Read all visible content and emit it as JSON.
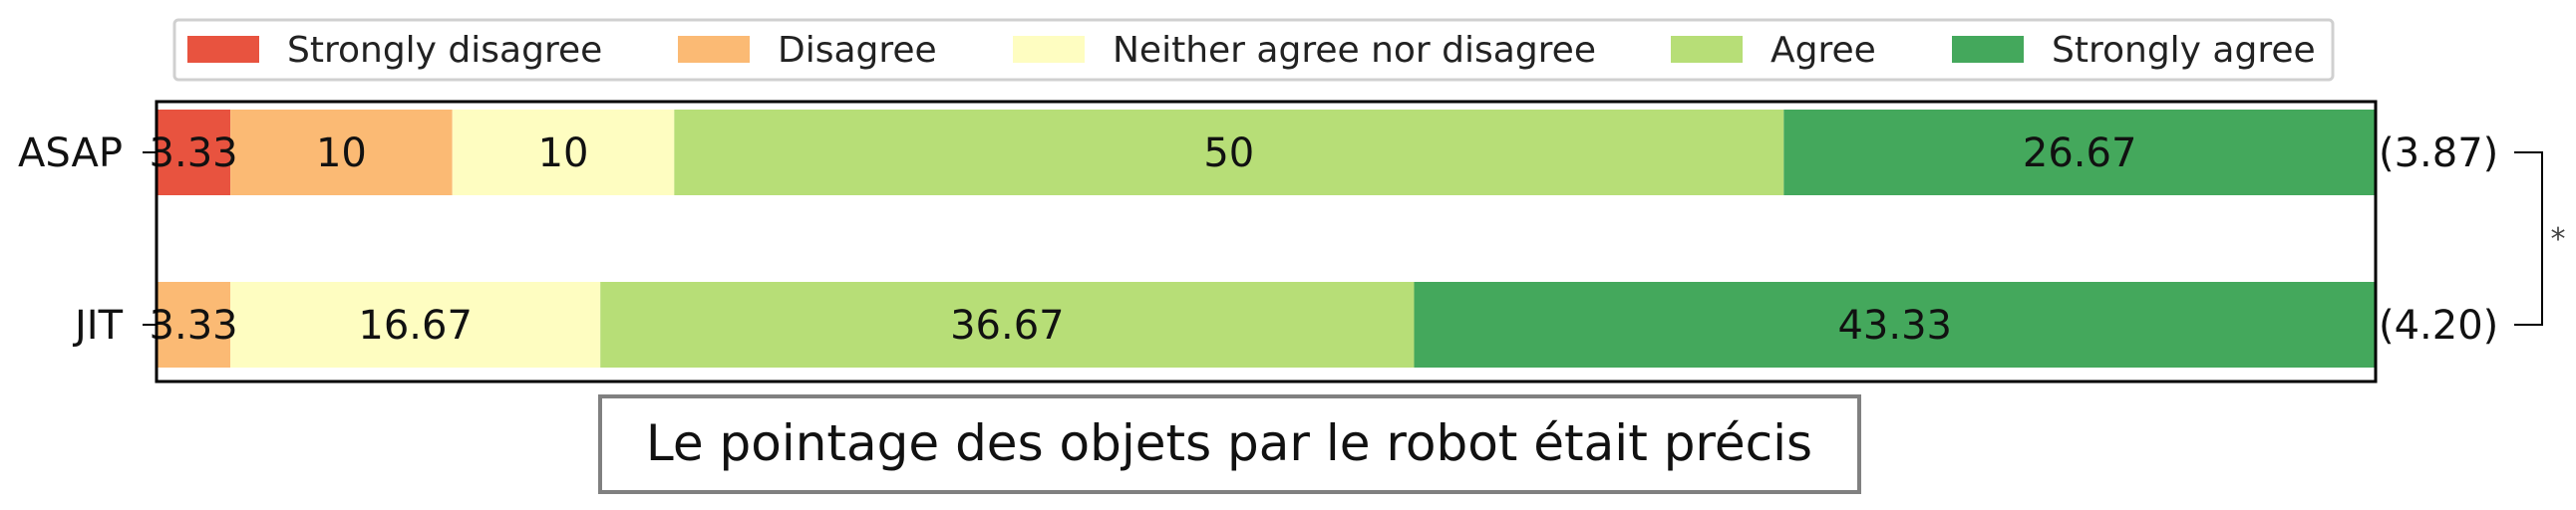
{
  "chart_data": {
    "type": "bar",
    "orientation": "horizontal",
    "stacked": true,
    "categories": [
      "ASAP",
      "JIT"
    ],
    "xlim": [
      0,
      100
    ],
    "series": [
      {
        "name": "Strongly disagree",
        "color": "#e8533f",
        "values": [
          3.33,
          0
        ]
      },
      {
        "name": "Disagree",
        "color": "#fbba74",
        "values": [
          10,
          3.33
        ]
      },
      {
        "name": "Neither agree nor disagree",
        "color": "#fefdc1",
        "values": [
          10,
          16.67
        ]
      },
      {
        "name": "Agree",
        "color": "#b7de77",
        "values": [
          50,
          36.67
        ]
      },
      {
        "name": "Strongly agree",
        "color": "#44a85c",
        "values": [
          26.67,
          43.33
        ]
      }
    ],
    "data_labels": [
      [
        "3.33",
        "10",
        "10",
        "50",
        "26.67"
      ],
      [
        "",
        "3.33",
        "16.67",
        "36.67",
        "43.33"
      ]
    ],
    "means": [
      "(3.87)",
      "(4.20)"
    ],
    "significance_marker": "*",
    "legend_position": "top",
    "grid": false,
    "caption": "Le pointage des objets par le robot était précis"
  }
}
